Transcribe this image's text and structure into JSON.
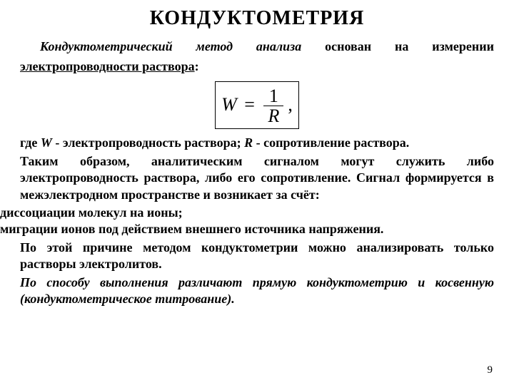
{
  "title": "КОНДУКТОМЕТРИЯ",
  "lead": {
    "emph": "Кондуктометрический метод анализа",
    "mid": " основан на измерении ",
    "ul": "электропроводности раствора",
    "tail": ":"
  },
  "formula": {
    "lhs": "W",
    "eq": "=",
    "num": "1",
    "den": "R",
    "comma": ","
  },
  "defs": {
    "gde": "где   ",
    "w": "W",
    "wtxt": " - электропроводность раствора; ",
    "r": "R",
    "rtxt": " - сопротивление раствора."
  },
  "para2": "Таким образом, аналитическим сигналом могут служить либо электропроводность раствора, либо его сопротивление. Сигнал формируется в межэлектродном пространстве и возникает за счёт:",
  "list": {
    "i1": "диссоциации молекул на ионы;",
    "i2": "миграции ионов под действием внешнего источника напряжения."
  },
  "concl": "По этой причине методом кондуктометрии можно анализировать только растворы электролитов.",
  "method": "По способу выполнения различают прямую кондуктометрию и косвенную (кондуктометрическое титрование).",
  "pagenum": "9",
  "colors": {
    "text": "#000000",
    "bg": "#ffffff",
    "border": "#000000"
  },
  "fonts": {
    "family": "Times New Roman",
    "title_size": 28,
    "body_size": 18,
    "formula_size": 26
  }
}
